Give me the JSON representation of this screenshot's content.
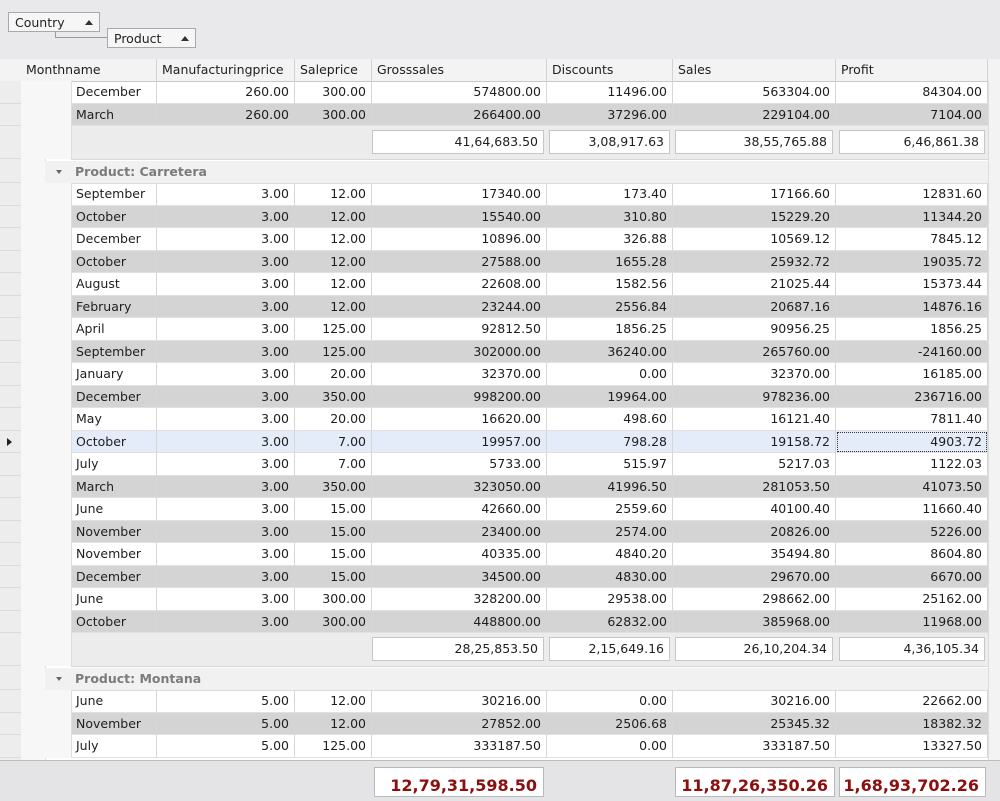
{
  "group_panel": {
    "chips": [
      {
        "label": "Country"
      },
      {
        "label": "Product"
      }
    ]
  },
  "columns": [
    "Monthname",
    "Manufacturingprice",
    "Saleprice",
    "Grosssales",
    "Discounts",
    "Sales",
    "Profit"
  ],
  "top_rows": [
    [
      "December",
      "260.00",
      "300.00",
      "574800.00",
      "11496.00",
      "563304.00",
      "84304.00"
    ],
    [
      "March",
      "260.00",
      "300.00",
      "266400.00",
      "37296.00",
      "229104.00",
      "7104.00"
    ]
  ],
  "top_summary": [
    "41,64,683.50",
    "3,08,917.63",
    "38,55,765.88",
    "6,46,861.38"
  ],
  "groups": [
    {
      "label": "Product: Carretera",
      "rows": [
        [
          "September",
          "3.00",
          "12.00",
          "17340.00",
          "173.40",
          "17166.60",
          "12831.60"
        ],
        [
          "October",
          "3.00",
          "12.00",
          "15540.00",
          "310.80",
          "15229.20",
          "11344.20"
        ],
        [
          "December",
          "3.00",
          "12.00",
          "10896.00",
          "326.88",
          "10569.12",
          "7845.12"
        ],
        [
          "October",
          "3.00",
          "12.00",
          "27588.00",
          "1655.28",
          "25932.72",
          "19035.72"
        ],
        [
          "August",
          "3.00",
          "12.00",
          "22608.00",
          "1582.56",
          "21025.44",
          "15373.44"
        ],
        [
          "February",
          "3.00",
          "12.00",
          "23244.00",
          "2556.84",
          "20687.16",
          "14876.16"
        ],
        [
          "April",
          "3.00",
          "125.00",
          "92812.50",
          "1856.25",
          "90956.25",
          "1856.25"
        ],
        [
          "September",
          "3.00",
          "125.00",
          "302000.00",
          "36240.00",
          "265760.00",
          "-24160.00"
        ],
        [
          "January",
          "3.00",
          "20.00",
          "32370.00",
          "0.00",
          "32370.00",
          "16185.00"
        ],
        [
          "December",
          "3.00",
          "350.00",
          "998200.00",
          "19964.00",
          "978236.00",
          "236716.00"
        ],
        [
          "May",
          "3.00",
          "20.00",
          "16620.00",
          "498.60",
          "16121.40",
          "7811.40"
        ],
        [
          "October",
          "3.00",
          "7.00",
          "19957.00",
          "798.28",
          "19158.72",
          "4903.72"
        ],
        [
          "July",
          "3.00",
          "7.00",
          "5733.00",
          "515.97",
          "5217.03",
          "1122.03"
        ],
        [
          "March",
          "3.00",
          "350.00",
          "323050.00",
          "41996.50",
          "281053.50",
          "41073.50"
        ],
        [
          "June",
          "3.00",
          "15.00",
          "42660.00",
          "2559.60",
          "40100.40",
          "11660.40"
        ],
        [
          "November",
          "3.00",
          "15.00",
          "23400.00",
          "2574.00",
          "20826.00",
          "5226.00"
        ],
        [
          "November",
          "3.00",
          "15.00",
          "40335.00",
          "4840.20",
          "35494.80",
          "8604.80"
        ],
        [
          "December",
          "3.00",
          "15.00",
          "34500.00",
          "4830.00",
          "29670.00",
          "6670.00"
        ],
        [
          "June",
          "3.00",
          "300.00",
          "328200.00",
          "29538.00",
          "298662.00",
          "25162.00"
        ],
        [
          "October",
          "3.00",
          "300.00",
          "448800.00",
          "62832.00",
          "385968.00",
          "11968.00"
        ]
      ],
      "summary": [
        "28,25,853.50",
        "2,15,649.16",
        "26,10,204.34",
        "4,36,105.34"
      ]
    },
    {
      "label": "Product: Montana",
      "rows": [
        [
          "June",
          "5.00",
          "12.00",
          "30216.00",
          "0.00",
          "30216.00",
          "22662.00"
        ],
        [
          "November",
          "5.00",
          "12.00",
          "27852.00",
          "2506.68",
          "25345.32",
          "18382.32"
        ],
        [
          "July",
          "5.00",
          "125.00",
          "333187.50",
          "0.00",
          "333187.50",
          "13327.50"
        ]
      ]
    }
  ],
  "grand_totals": [
    "12,79,31,598.50",
    "11,87,26,350.26",
    "1,68,93,702.26"
  ]
}
